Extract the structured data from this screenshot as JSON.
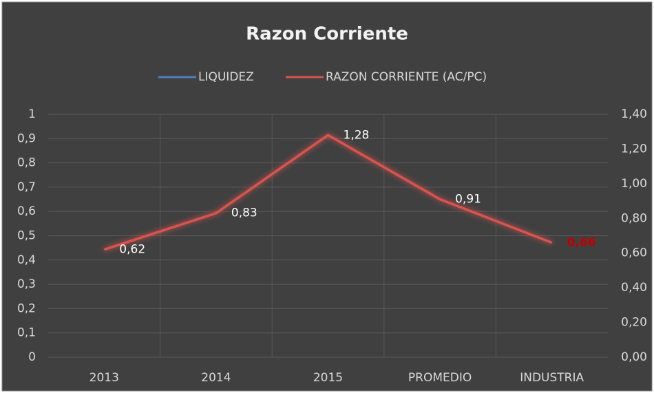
{
  "chart_data": {
    "type": "line",
    "title": "Razon Corriente",
    "categories": [
      "2013",
      "2014",
      "2015",
      "PROMEDIO",
      "INDUSTRIA"
    ],
    "series": [
      {
        "name": "LIQUIDEZ",
        "color": "#4f81bd",
        "values": [
          0,
          0,
          0,
          0,
          0
        ]
      },
      {
        "name": "RAZON CORRIENTE (AC/PC)",
        "color": "#d9534f",
        "axis": "y2",
        "values": [
          0.62,
          0.83,
          1.28,
          0.91,
          0.66
        ],
        "value_labels": [
          "0,62",
          "0,83",
          "1,28",
          "0,91",
          "0,66"
        ],
        "value_label_colors": [
          "#ffffff",
          "#ffffff",
          "#ffffff",
          "#ffffff",
          "#c00000"
        ]
      }
    ],
    "ylim": [
      0,
      1
    ],
    "yticks": [
      0,
      {
        "value": 0.1,
        "label": "0,1"
      },
      {
        "value": 0.2,
        "label": "0,2"
      },
      {
        "value": 0.3,
        "label": "0,3"
      },
      {
        "value": 0.4,
        "label": "0,4"
      },
      {
        "value": 0.5,
        "label": "0,5"
      },
      {
        "value": 0.6,
        "label": "0,6"
      },
      {
        "value": 0.7,
        "label": "0,7"
      },
      {
        "value": 0.8,
        "label": "0,8"
      },
      {
        "value": 0.9,
        "label": "0,9"
      },
      1
    ],
    "y2lim": [
      0,
      1.4
    ],
    "y2ticks": [
      {
        "value": 0,
        "label": "0,00"
      },
      {
        "value": 0.2,
        "label": "0,20"
      },
      {
        "value": 0.4,
        "label": "0,40"
      },
      {
        "value": 0.6,
        "label": "0,60"
      },
      {
        "value": 0.8,
        "label": "0,80"
      },
      {
        "value": 1.0,
        "label": "1,00"
      },
      {
        "value": 1.2,
        "label": "1,20"
      },
      {
        "value": 1.4,
        "label": "1,40"
      }
    ],
    "grid": true,
    "legend": "top"
  }
}
